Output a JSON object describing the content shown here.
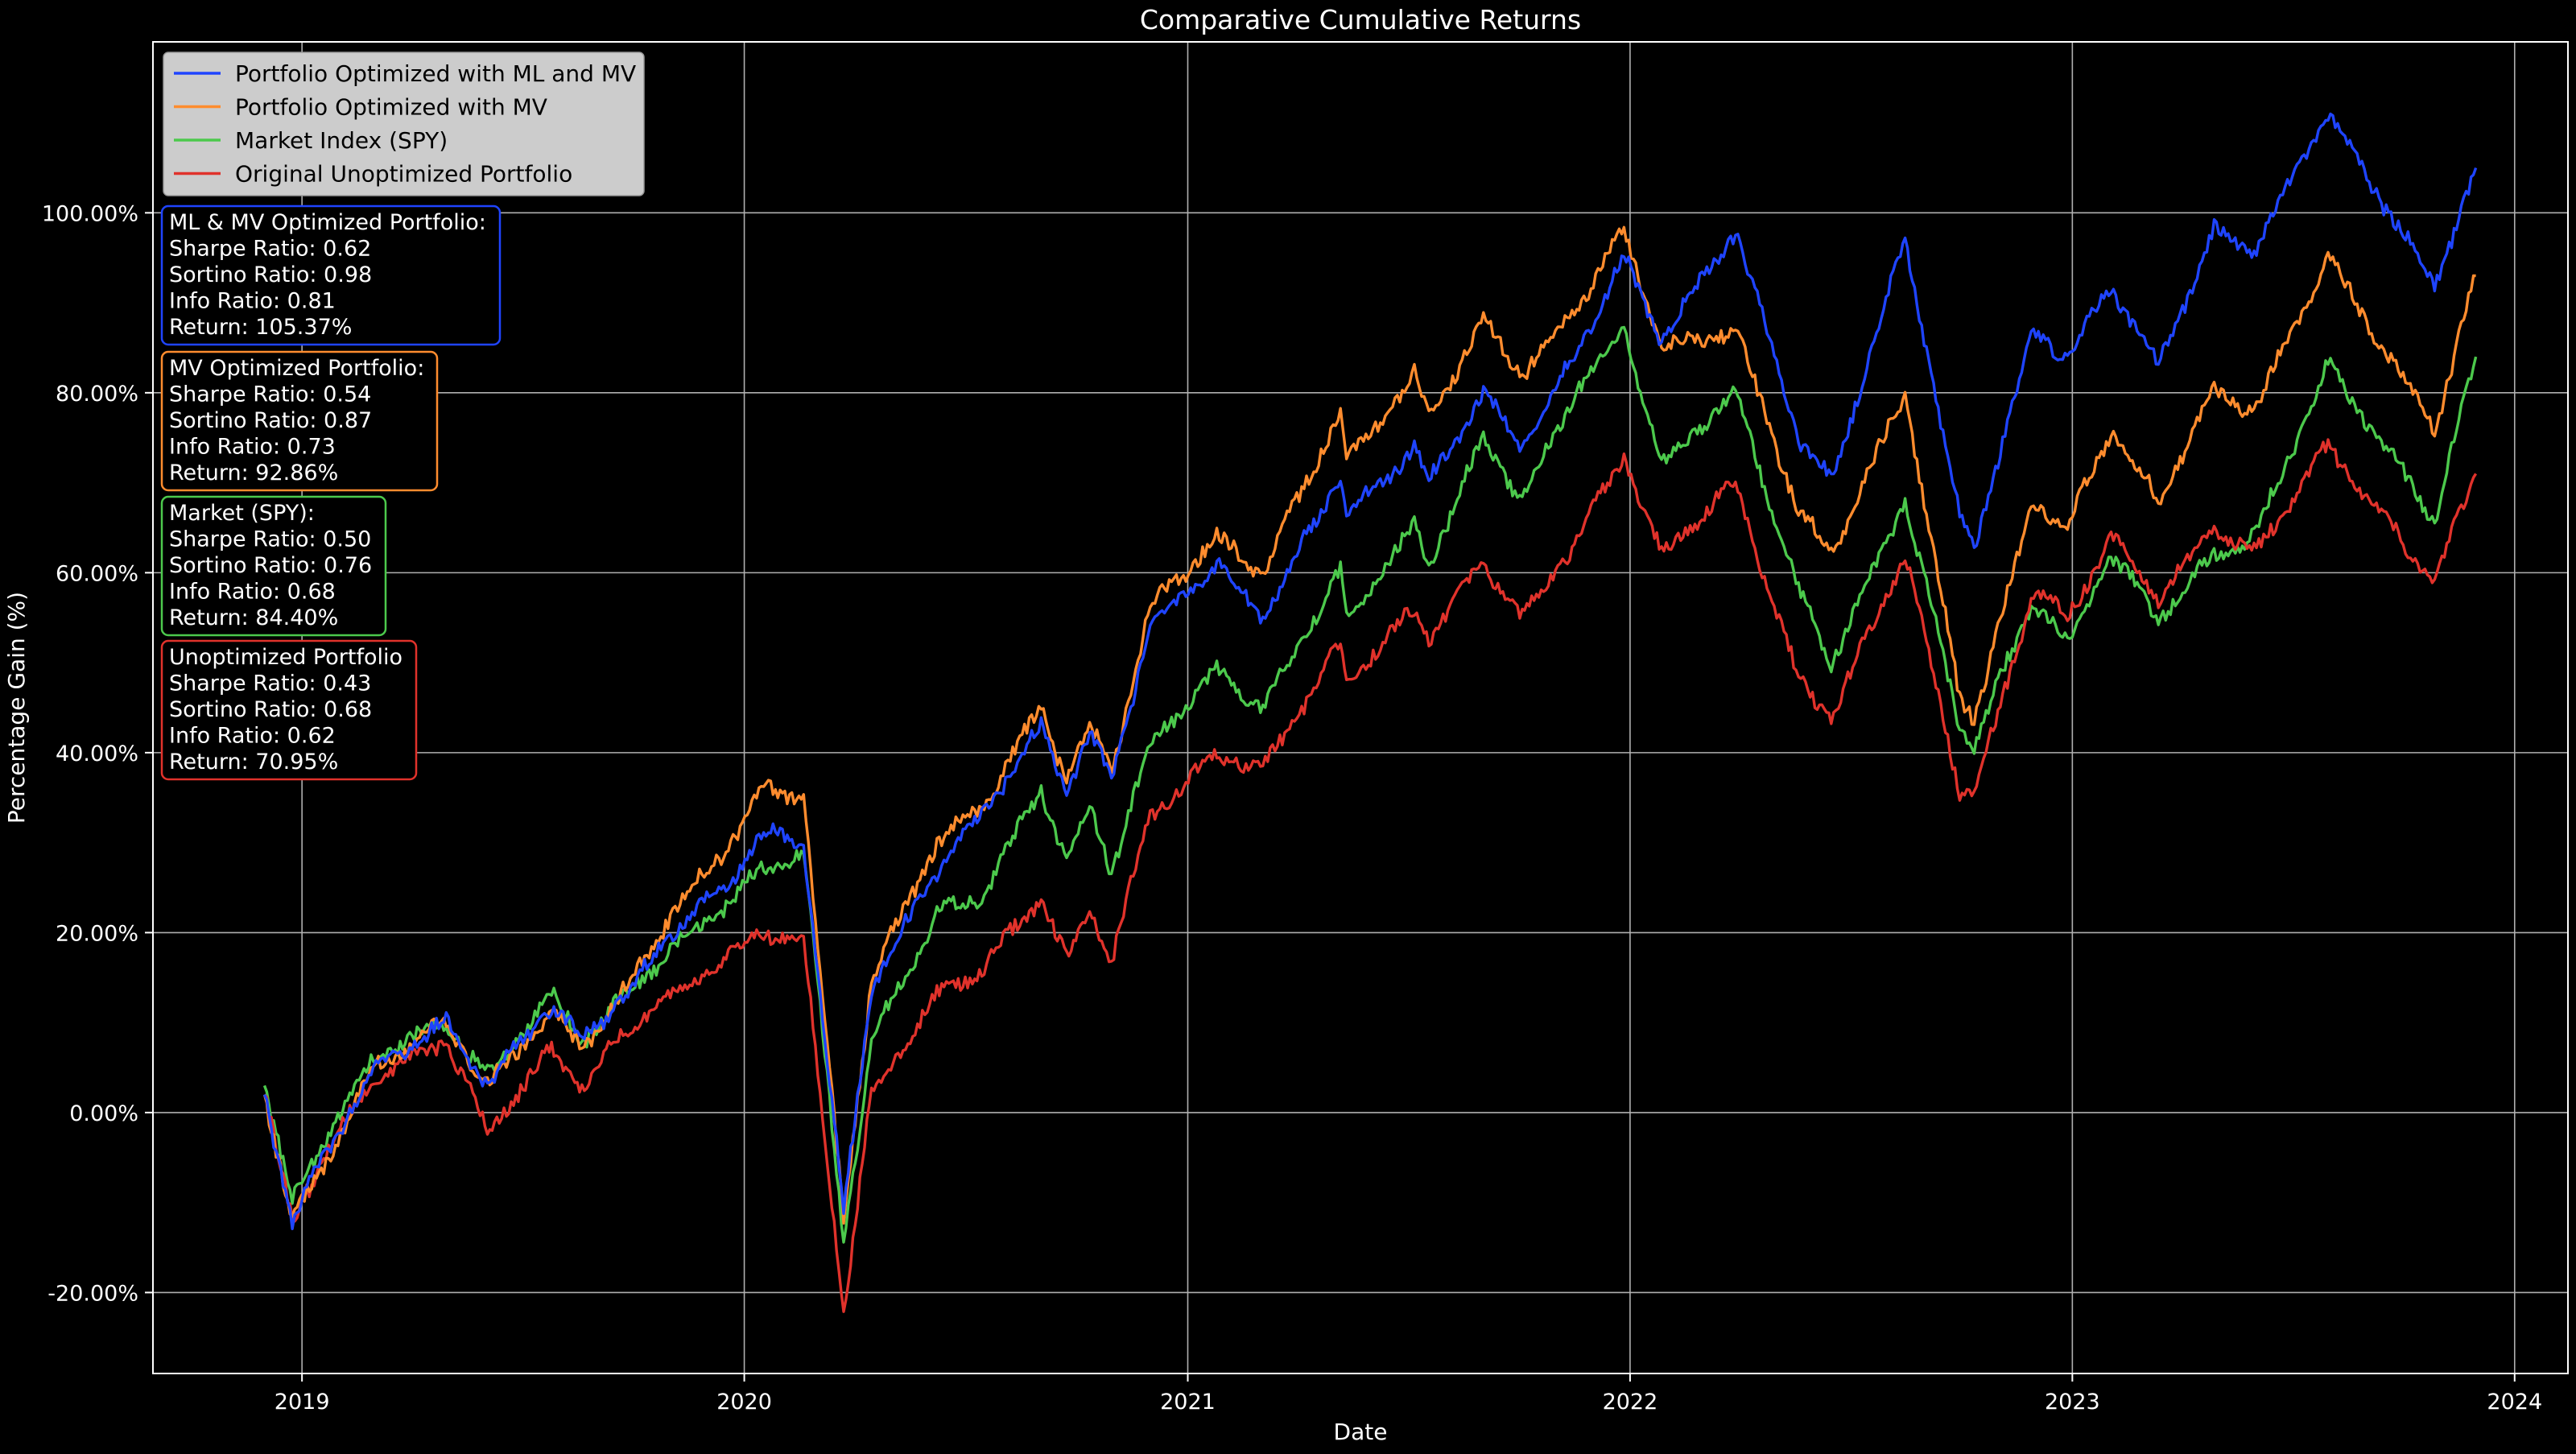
{
  "chart_data": {
    "type": "line",
    "title": "Comparative Cumulative Returns",
    "xlabel": "Date",
    "ylabel": "Percentage Gain (%)",
    "xlim": [
      "2018-08-31",
      "2024-02-14"
    ],
    "ylim": [
      -0.29,
      1.19
    ],
    "x_ticks": [
      "2019",
      "2020",
      "2021",
      "2022",
      "2023",
      "2024"
    ],
    "y_ticks": [
      -0.2,
      0.0,
      0.2,
      0.4,
      0.6,
      0.8,
      1.0
    ],
    "y_tick_labels": [
      "-20.00%",
      "0.00%",
      "20.00%",
      "40.00%",
      "60.00%",
      "80.00%",
      "100.00%"
    ],
    "grid": true,
    "legend_position": "top-left",
    "background": "#000000",
    "series": [
      {
        "name": "Portfolio Optimized with ML and MV",
        "color": "#1f44ff",
        "points": [
          [
            "2018-12-01",
            0.02
          ],
          [
            "2018-12-24",
            -0.12
          ],
          [
            "2019-01-15",
            -0.06
          ],
          [
            "2019-03-01",
            0.05
          ],
          [
            "2019-04-30",
            0.1
          ],
          [
            "2019-06-03",
            0.03
          ],
          [
            "2019-07-26",
            0.12
          ],
          [
            "2019-08-20",
            0.08
          ],
          [
            "2019-10-01",
            0.14
          ],
          [
            "2019-11-01",
            0.2
          ],
          [
            "2019-12-15",
            0.25
          ],
          [
            "2020-01-17",
            0.31
          ],
          [
            "2020-02-19",
            0.3
          ],
          [
            "2020-03-23",
            -0.11
          ],
          [
            "2020-04-15",
            0.14
          ],
          [
            "2020-06-08",
            0.27
          ],
          [
            "2020-07-15",
            0.33
          ],
          [
            "2020-09-02",
            0.43
          ],
          [
            "2020-09-23",
            0.36
          ],
          [
            "2020-10-12",
            0.42
          ],
          [
            "2020-10-30",
            0.37
          ],
          [
            "2020-12-01",
            0.54
          ],
          [
            "2021-01-25",
            0.61
          ],
          [
            "2021-03-04",
            0.55
          ],
          [
            "2021-05-07",
            0.71
          ],
          [
            "2021-05-12",
            0.66
          ],
          [
            "2021-07-07",
            0.74
          ],
          [
            "2021-07-19",
            0.7
          ],
          [
            "2021-09-02",
            0.8
          ],
          [
            "2021-10-04",
            0.74
          ],
          [
            "2021-11-20",
            0.85
          ],
          [
            "2021-12-27",
            0.95
          ],
          [
            "2022-01-27",
            0.86
          ],
          [
            "2022-03-29",
            0.98
          ],
          [
            "2022-05-20",
            0.75
          ],
          [
            "2022-06-16",
            0.7
          ],
          [
            "2022-08-16",
            0.97
          ],
          [
            "2022-09-30",
            0.66
          ],
          [
            "2022-10-12",
            0.63
          ],
          [
            "2022-11-30",
            0.87
          ],
          [
            "2022-12-28",
            0.84
          ],
          [
            "2023-02-02",
            0.92
          ],
          [
            "2023-03-13",
            0.83
          ],
          [
            "2023-04-28",
            0.98
          ],
          [
            "2023-05-31",
            0.96
          ],
          [
            "2023-07-31",
            1.11
          ],
          [
            "2023-10-27",
            0.92
          ],
          [
            "2023-11-30",
            1.05
          ]
        ]
      },
      {
        "name": "Portfolio Optimized with MV",
        "color": "#ff8c2e",
        "points": [
          [
            "2018-12-01",
            0.02
          ],
          [
            "2018-12-24",
            -0.12
          ],
          [
            "2019-01-15",
            -0.07
          ],
          [
            "2019-03-01",
            0.05
          ],
          [
            "2019-04-30",
            0.1
          ],
          [
            "2019-06-03",
            0.03
          ],
          [
            "2019-07-26",
            0.11
          ],
          [
            "2019-08-20",
            0.07
          ],
          [
            "2019-10-01",
            0.15
          ],
          [
            "2019-11-01",
            0.22
          ],
          [
            "2019-12-15",
            0.29
          ],
          [
            "2020-01-17",
            0.36
          ],
          [
            "2020-02-19",
            0.35
          ],
          [
            "2020-03-23",
            -0.12
          ],
          [
            "2020-04-15",
            0.15
          ],
          [
            "2020-06-08",
            0.3
          ],
          [
            "2020-07-15",
            0.34
          ],
          [
            "2020-09-02",
            0.45
          ],
          [
            "2020-09-23",
            0.37
          ],
          [
            "2020-10-12",
            0.43
          ],
          [
            "2020-10-30",
            0.38
          ],
          [
            "2020-12-01",
            0.56
          ],
          [
            "2021-01-25",
            0.64
          ],
          [
            "2021-03-04",
            0.6
          ],
          [
            "2021-05-07",
            0.78
          ],
          [
            "2021-05-12",
            0.72
          ],
          [
            "2021-07-07",
            0.82
          ],
          [
            "2021-07-19",
            0.77
          ],
          [
            "2021-09-02",
            0.88
          ],
          [
            "2021-10-04",
            0.82
          ],
          [
            "2021-11-20",
            0.9
          ],
          [
            "2021-12-27",
            0.98
          ],
          [
            "2022-01-27",
            0.85
          ],
          [
            "2022-03-29",
            0.87
          ],
          [
            "2022-05-20",
            0.67
          ],
          [
            "2022-06-16",
            0.62
          ],
          [
            "2022-08-16",
            0.8
          ],
          [
            "2022-09-30",
            0.46
          ],
          [
            "2022-10-12",
            0.44
          ],
          [
            "2022-11-30",
            0.68
          ],
          [
            "2022-12-28",
            0.65
          ],
          [
            "2023-02-02",
            0.76
          ],
          [
            "2023-03-13",
            0.68
          ],
          [
            "2023-04-28",
            0.8
          ],
          [
            "2023-05-31",
            0.78
          ],
          [
            "2023-07-31",
            0.95
          ],
          [
            "2023-10-27",
            0.76
          ],
          [
            "2023-11-30",
            0.93
          ]
        ]
      },
      {
        "name": "Market Index (SPY)",
        "color": "#4cc94c",
        "points": [
          [
            "2018-12-01",
            0.03
          ],
          [
            "2018-12-24",
            -0.1
          ],
          [
            "2019-01-15",
            -0.04
          ],
          [
            "2019-03-01",
            0.06
          ],
          [
            "2019-04-30",
            0.1
          ],
          [
            "2019-06-03",
            0.04
          ],
          [
            "2019-07-26",
            0.13
          ],
          [
            "2019-08-20",
            0.08
          ],
          [
            "2019-10-01",
            0.14
          ],
          [
            "2019-11-01",
            0.18
          ],
          [
            "2019-12-15",
            0.23
          ],
          [
            "2020-01-17",
            0.27
          ],
          [
            "2020-02-19",
            0.29
          ],
          [
            "2020-03-23",
            -0.14
          ],
          [
            "2020-04-15",
            0.08
          ],
          [
            "2020-06-08",
            0.22
          ],
          [
            "2020-07-15",
            0.24
          ],
          [
            "2020-09-02",
            0.36
          ],
          [
            "2020-09-23",
            0.28
          ],
          [
            "2020-10-12",
            0.34
          ],
          [
            "2020-10-30",
            0.27
          ],
          [
            "2020-12-01",
            0.41
          ],
          [
            "2021-01-25",
            0.49
          ],
          [
            "2021-03-04",
            0.45
          ],
          [
            "2021-05-07",
            0.6
          ],
          [
            "2021-05-12",
            0.55
          ],
          [
            "2021-07-07",
            0.65
          ],
          [
            "2021-07-19",
            0.61
          ],
          [
            "2021-09-02",
            0.75
          ],
          [
            "2021-10-04",
            0.68
          ],
          [
            "2021-11-20",
            0.81
          ],
          [
            "2021-12-27",
            0.87
          ],
          [
            "2022-01-27",
            0.72
          ],
          [
            "2022-03-29",
            0.8
          ],
          [
            "2022-05-20",
            0.58
          ],
          [
            "2022-06-16",
            0.5
          ],
          [
            "2022-08-16",
            0.68
          ],
          [
            "2022-09-30",
            0.43
          ],
          [
            "2022-10-12",
            0.41
          ],
          [
            "2022-11-30",
            0.57
          ],
          [
            "2022-12-28",
            0.52
          ],
          [
            "2023-02-02",
            0.62
          ],
          [
            "2023-03-13",
            0.55
          ],
          [
            "2023-04-28",
            0.62
          ],
          [
            "2023-05-31",
            0.64
          ],
          [
            "2023-07-31",
            0.83
          ],
          [
            "2023-10-27",
            0.66
          ],
          [
            "2023-11-30",
            0.84
          ]
        ]
      },
      {
        "name": "Original Unoptimized Portfolio",
        "color": "#e0322b",
        "points": [
          [
            "2018-12-01",
            0.02
          ],
          [
            "2018-12-24",
            -0.12
          ],
          [
            "2019-01-15",
            -0.06
          ],
          [
            "2019-03-01",
            0.04
          ],
          [
            "2019-04-30",
            0.08
          ],
          [
            "2019-06-03",
            -0.02
          ],
          [
            "2019-07-26",
            0.07
          ],
          [
            "2019-08-20",
            0.03
          ],
          [
            "2019-10-01",
            0.1
          ],
          [
            "2019-11-01",
            0.13
          ],
          [
            "2019-12-15",
            0.17
          ],
          [
            "2020-01-17",
            0.2
          ],
          [
            "2020-02-19",
            0.19
          ],
          [
            "2020-03-23",
            -0.22
          ],
          [
            "2020-04-15",
            0.02
          ],
          [
            "2020-06-08",
            0.13
          ],
          [
            "2020-07-15",
            0.16
          ],
          [
            "2020-09-02",
            0.24
          ],
          [
            "2020-09-23",
            0.17
          ],
          [
            "2020-10-12",
            0.23
          ],
          [
            "2020-10-30",
            0.17
          ],
          [
            "2020-12-01",
            0.33
          ],
          [
            "2021-01-25",
            0.4
          ],
          [
            "2021-03-04",
            0.38
          ],
          [
            "2021-05-07",
            0.52
          ],
          [
            "2021-05-12",
            0.48
          ],
          [
            "2021-07-07",
            0.56
          ],
          [
            "2021-07-19",
            0.53
          ],
          [
            "2021-09-02",
            0.61
          ],
          [
            "2021-10-04",
            0.55
          ],
          [
            "2021-11-20",
            0.64
          ],
          [
            "2021-12-27",
            0.73
          ],
          [
            "2022-01-27",
            0.62
          ],
          [
            "2022-03-29",
            0.7
          ],
          [
            "2022-05-20",
            0.48
          ],
          [
            "2022-06-16",
            0.44
          ],
          [
            "2022-08-16",
            0.62
          ],
          [
            "2022-09-30",
            0.36
          ],
          [
            "2022-10-12",
            0.35
          ],
          [
            "2022-11-30",
            0.58
          ],
          [
            "2022-12-28",
            0.55
          ],
          [
            "2023-02-02",
            0.64
          ],
          [
            "2023-03-13",
            0.57
          ],
          [
            "2023-04-28",
            0.65
          ],
          [
            "2023-05-31",
            0.62
          ],
          [
            "2023-07-31",
            0.74
          ],
          [
            "2023-10-27",
            0.59
          ],
          [
            "2023-11-30",
            0.71
          ]
        ]
      }
    ],
    "stats_boxes": [
      {
        "color": "#1f44ff",
        "lines": [
          "ML & MV Optimized Portfolio:",
          "Sharpe Ratio: 0.62",
          "Sortino Ratio: 0.98",
          "Info Ratio: 0.81",
          "Return: 105.37%"
        ]
      },
      {
        "color": "#ff8c2e",
        "lines": [
          "MV Optimized Portfolio:",
          "Sharpe Ratio: 0.54",
          "Sortino Ratio: 0.87",
          "Info Ratio: 0.73",
          "Return: 92.86%"
        ]
      },
      {
        "color": "#4cc94c",
        "lines": [
          "Market (SPY):",
          "Sharpe Ratio: 0.50",
          "Sortino Ratio: 0.76",
          "Info Ratio: 0.68",
          "Return: 84.40%"
        ]
      },
      {
        "color": "#e0322b",
        "lines": [
          "Unoptimized Portfolio",
          "Sharpe Ratio: 0.43",
          "Sortino Ratio: 0.68",
          "Info Ratio: 0.62",
          "Return: 70.95%"
        ]
      }
    ]
  }
}
